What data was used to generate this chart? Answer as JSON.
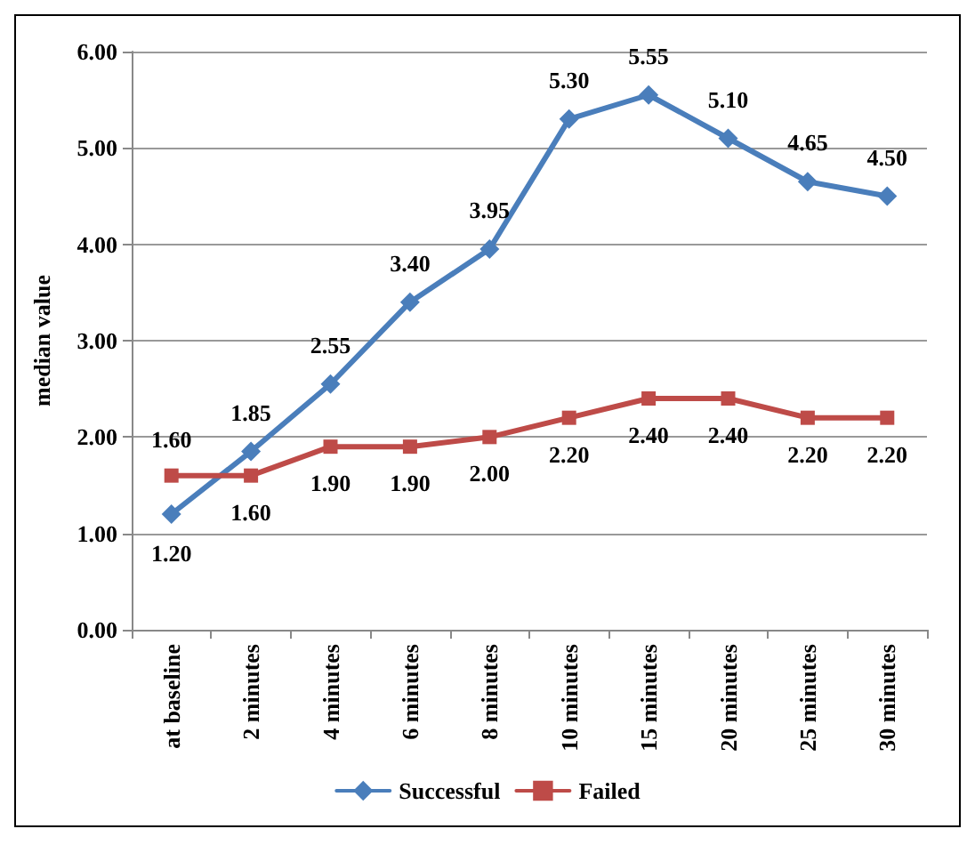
{
  "chart_data": {
    "type": "line",
    "ylabel": "median value",
    "categories": [
      "at baseline",
      "2 minutes",
      "4 minutes",
      "6 minutes",
      "8 minutes",
      "10 minutes",
      "15 minutes",
      "20 minutes",
      "25 minutes",
      "30 minutes"
    ],
    "series": [
      {
        "name": "Successful",
        "color": "#4a7ebb",
        "marker": "diamond",
        "values": [
          1.2,
          1.85,
          2.55,
          3.4,
          3.95,
          5.3,
          5.55,
          5.1,
          4.65,
          4.5
        ],
        "value_labels": [
          "1.20",
          "1.85",
          "2.55",
          "3.40",
          "3.95",
          "5.30",
          "5.55",
          "5.10",
          "4.65",
          "4.50"
        ]
      },
      {
        "name": "Failed",
        "color": "#be4b48",
        "marker": "square",
        "values": [
          1.6,
          1.6,
          1.9,
          1.9,
          2.0,
          2.2,
          2.4,
          2.4,
          2.2,
          2.2
        ],
        "value_labels": [
          "1.60",
          "1.60",
          "1.90",
          "1.90",
          "2.00",
          "2.20",
          "2.40",
          "2.40",
          "2.20",
          "2.20"
        ]
      }
    ],
    "ylim": [
      0,
      6
    ],
    "yticks": [
      {
        "value": 0,
        "label": "0.00"
      },
      {
        "value": 1,
        "label": "1.00"
      },
      {
        "value": 2,
        "label": "2.00"
      },
      {
        "value": 3,
        "label": "3.00"
      },
      {
        "value": 4,
        "label": "4.00"
      },
      {
        "value": 5,
        "label": "5.00"
      },
      {
        "value": 6,
        "label": "6.00"
      }
    ],
    "grid": "y",
    "legend": "bottom",
    "line_style": "solid"
  }
}
